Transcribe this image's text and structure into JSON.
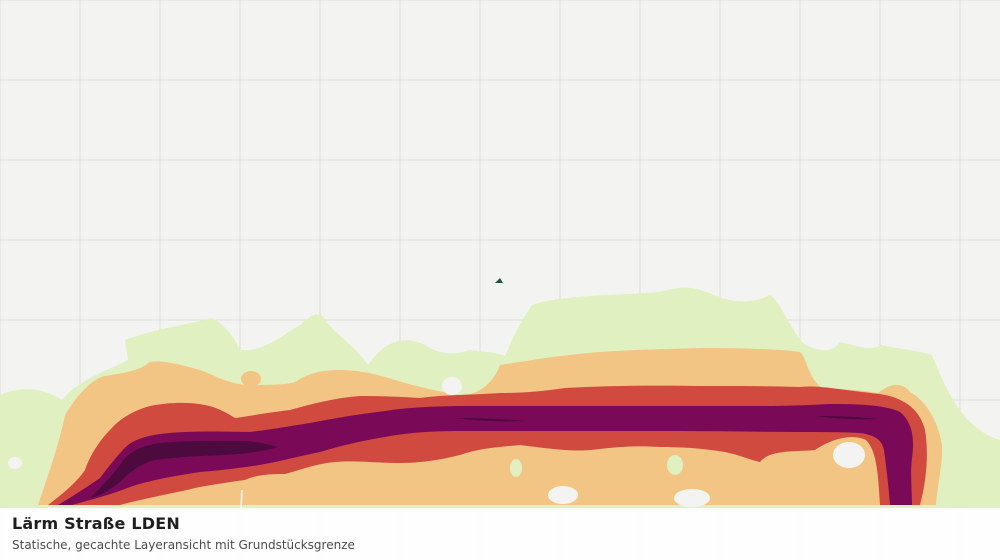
{
  "map": {
    "background": "#f3f4f2",
    "grid_color": "#dcdedb",
    "layer": {
      "name": "Lärm Straße LDEN",
      "colors": {
        "band_1": "#e1f0c0",
        "band_2": "#f3c585",
        "band_3": "#d04a3f",
        "band_4": "#7a0a57",
        "band_5": "#4d0a3e"
      }
    },
    "marker_color": "#1f5a3c"
  },
  "caption": {
    "title": "Lärm Straße LDEN",
    "subtitle": "Statische, gecachte Layeransicht mit Grundstücksgrenze"
  }
}
